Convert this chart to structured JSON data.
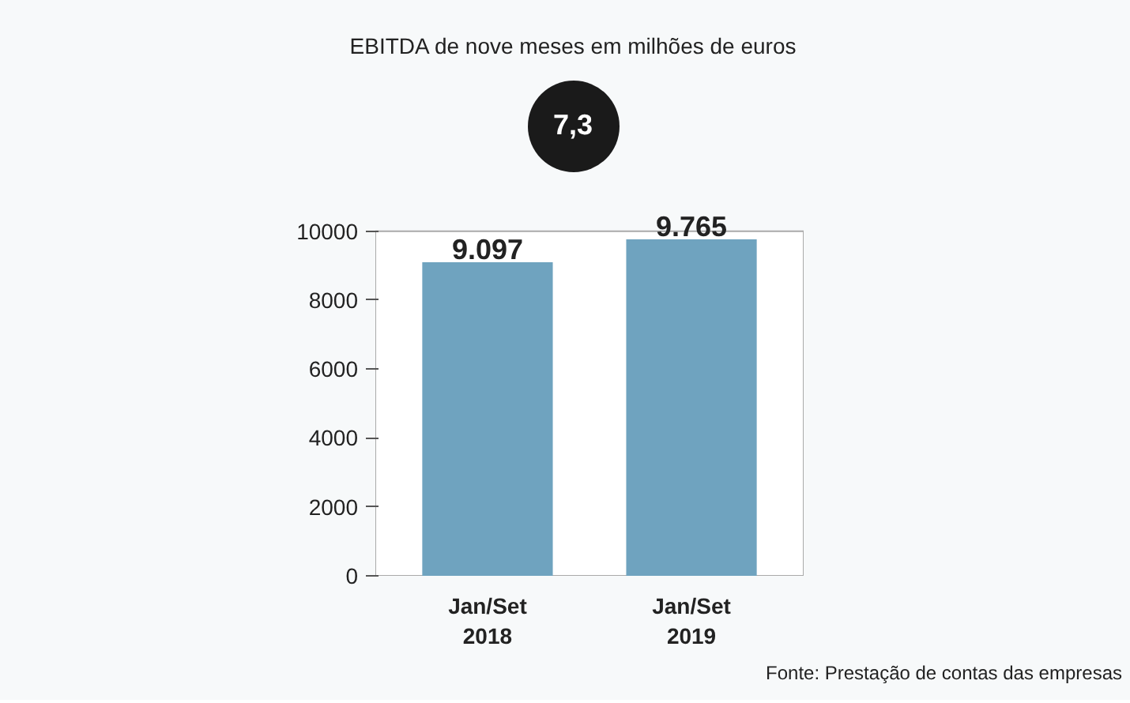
{
  "chart_data": {
    "type": "bar",
    "title": "EBITDA de nove meses em milhões de euros",
    "categories": [
      "Jan/Set\n2018",
      "Jan/Set\n2019"
    ],
    "values": [
      9097,
      9765
    ],
    "value_labels": [
      "9.097",
      "9.765"
    ],
    "color": "#6fa3bf",
    "ylim": [
      0,
      10000
    ],
    "yticks": [
      0,
      2000,
      4000,
      6000,
      8000,
      10000
    ],
    "grid": false,
    "annotations": [
      "7,3",
      "Fonte: Prestação de contas das empresas"
    ]
  }
}
